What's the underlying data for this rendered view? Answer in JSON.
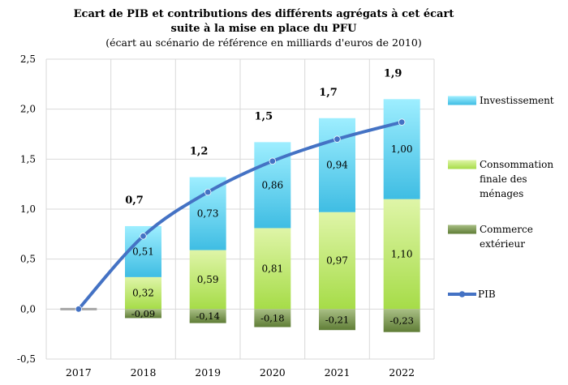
{
  "chart_data": {
    "type": "bar",
    "title": "Ecart de PIB et contributions des différents agrégats à cet écart",
    "title_line2": "suite à la mise en place du PFU",
    "subtitle": "(écart au scénario de référence en milliards d'euros de 2010)",
    "categories": [
      "2017",
      "2018",
      "2019",
      "2020",
      "2021",
      "2022"
    ],
    "ylim": [
      -0.5,
      2.5
    ],
    "yticks": [
      -0.5,
      0.0,
      0.5,
      1.0,
      1.5,
      2.0,
      2.5
    ],
    "ytick_labels": [
      "-0,5",
      "0,0",
      "0,5",
      "1,0",
      "1,5",
      "2,0",
      "2,5"
    ],
    "grid": true,
    "legend_position": "right",
    "series": [
      {
        "name": "Investissement",
        "kind": "bar",
        "color": "#45c8ec",
        "values": [
          0,
          0.51,
          0.73,
          0.86,
          0.94,
          1.0
        ],
        "labels": [
          "",
          "0,51",
          "0,73",
          "0,86",
          "0,94",
          "1,00"
        ]
      },
      {
        "name": "Consommation finale des ménages",
        "legend_lines": [
          "Consommation",
          "finale des",
          "ménages"
        ],
        "kind": "bar",
        "color": "#b5e35a",
        "values": [
          0,
          0.32,
          0.59,
          0.81,
          0.97,
          1.1
        ],
        "labels": [
          "",
          "0,32",
          "0,59",
          "0,81",
          "0,97",
          "1,10"
        ]
      },
      {
        "name": "Commerce extérieur",
        "legend_lines": [
          "Commerce",
          "extérieur"
        ],
        "kind": "bar",
        "color": "#7d9a4f",
        "values": [
          0,
          -0.09,
          -0.14,
          -0.18,
          -0.21,
          -0.23
        ],
        "labels": [
          "",
          "-0,09",
          "-0,14",
          "-0,18",
          "-0,21",
          "-0,23"
        ]
      },
      {
        "name": "PIB",
        "kind": "line",
        "color": "#4472c4",
        "values": [
          0,
          0.73,
          1.17,
          1.48,
          1.7,
          1.87
        ],
        "labels": [
          "",
          "0,7",
          "1,2",
          "1,5",
          "1,7",
          "1,9"
        ]
      }
    ]
  }
}
